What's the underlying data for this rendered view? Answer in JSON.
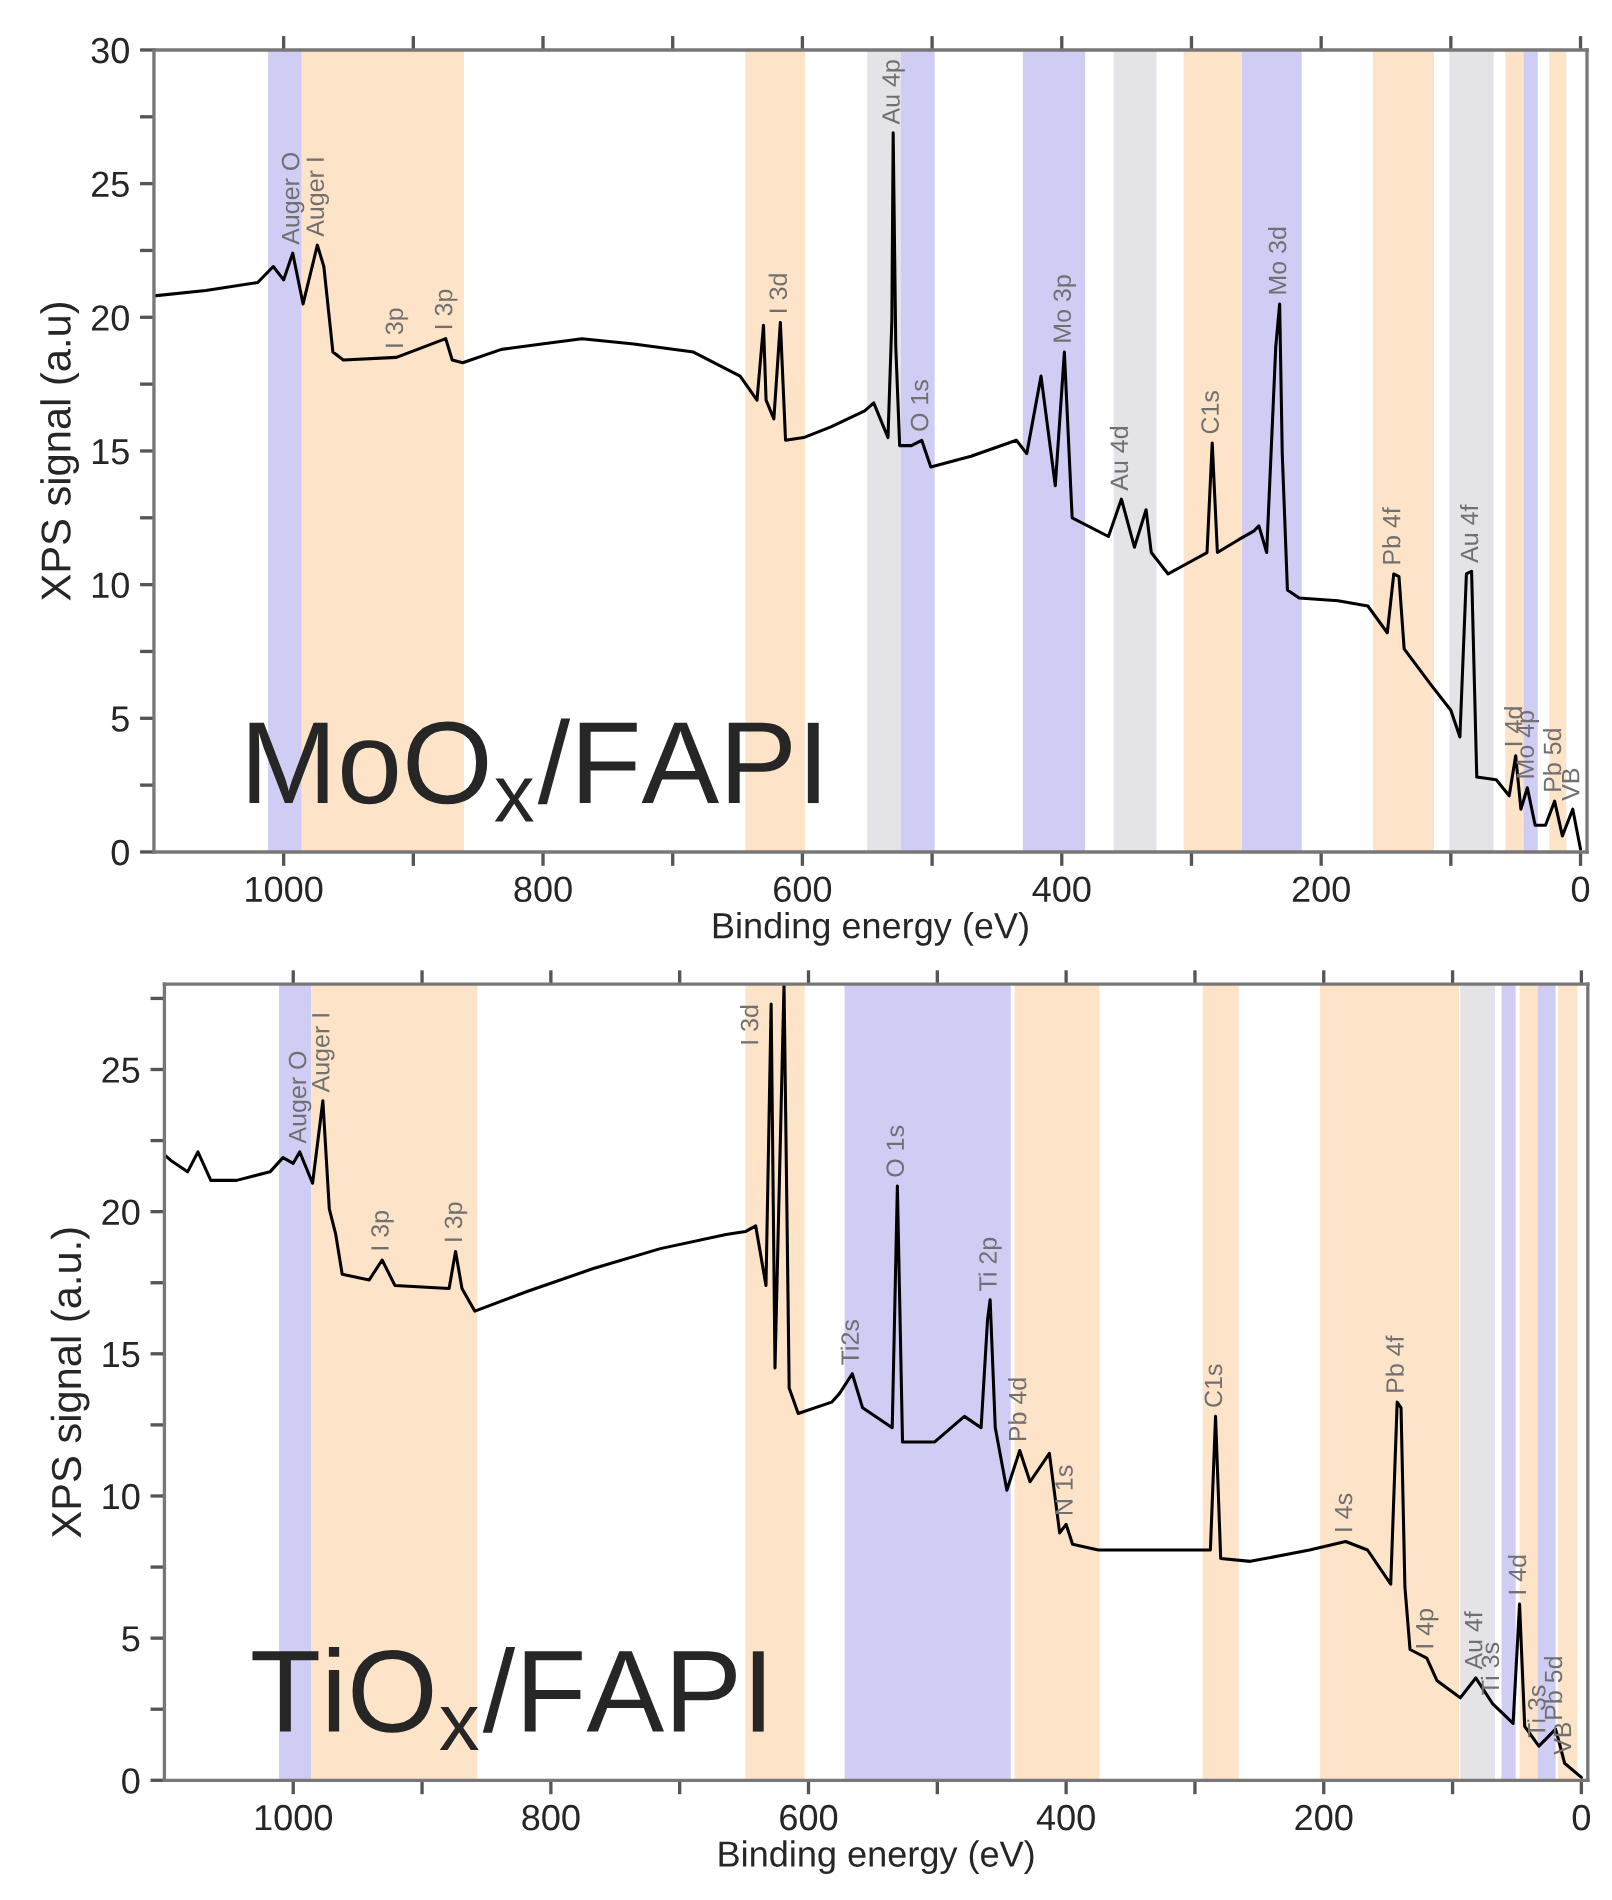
{
  "chart_data": [
    {
      "type": "line",
      "xlabel": "Binding energy (eV)",
      "ylabel": "XPS signal (a.u)",
      "xlim": [
        1100,
        -5
      ],
      "ylim": [
        0,
        30
      ],
      "xticks": [
        1000,
        {
          "value": 900,
          "label": null
        },
        800,
        {
          "value": 700,
          "label": null
        },
        600,
        {
          "value": 500,
          "label": null
        },
        400,
        {
          "value": 300,
          "label": null
        },
        200,
        {
          "value": 100,
          "label": null
        },
        0
      ],
      "yticks": [
        0,
        {
          "value": 2.5,
          "label": null
        },
        5,
        {
          "value": 7.5,
          "label": null
        },
        10,
        {
          "value": 12.5,
          "label": null
        },
        15,
        {
          "value": 17.5,
          "label": null
        },
        20,
        {
          "value": 22.5,
          "label": null
        },
        25,
        {
          "value": 27.5,
          "label": null
        },
        30
      ],
      "grid": false,
      "legend": false,
      "series": [
        {
          "color": "#000000",
          "x": [
            1100,
            1060,
            1020,
            1008,
            1000,
            993,
            985,
            974,
            969,
            962,
            954,
            913,
            875,
            870,
            862,
            832,
            801,
            770,
            730,
            684,
            648,
            635,
            630,
            628,
            622,
            617,
            613,
            599,
            578,
            552,
            545,
            534,
            531,
            530,
            528,
            525,
            516,
            508,
            501,
            470,
            435,
            427,
            416,
            405,
            398,
            392,
            364,
            354,
            344,
            335,
            331,
            318,
            303,
            288,
            284,
            280,
            263,
            252,
            248,
            242,
            235,
            232,
            230,
            226,
            217,
            187,
            164,
            149,
            144,
            140,
            136,
            116,
            100,
            93,
            88,
            84,
            80,
            65,
            55,
            50,
            46,
            41,
            35,
            27,
            20,
            14,
            6,
            0
          ],
          "values": [
            20.8,
            21.0,
            21.3,
            21.9,
            21.4,
            22.4,
            20.5,
            22.7,
            21.9,
            18.7,
            18.4,
            18.5,
            19.2,
            18.4,
            18.3,
            18.8,
            19.0,
            19.2,
            19.0,
            18.7,
            17.8,
            16.9,
            19.7,
            16.9,
            16.2,
            19.8,
            15.4,
            15.5,
            15.9,
            16.5,
            16.8,
            15.5,
            19.9,
            26.9,
            18.9,
            15.2,
            15.2,
            15.4,
            14.4,
            14.8,
            15.4,
            14.9,
            17.8,
            13.7,
            18.7,
            12.5,
            11.8,
            13.2,
            11.4,
            12.8,
            11.2,
            10.4,
            10.8,
            11.2,
            15.3,
            11.2,
            11.7,
            12.0,
            12.2,
            11.2,
            18.9,
            20.5,
            14.9,
            9.8,
            9.5,
            9.4,
            9.2,
            8.2,
            10.4,
            10.3,
            7.6,
            6.3,
            5.3,
            4.3,
            10.4,
            10.5,
            2.8,
            2.7,
            2.1,
            3.6,
            1.6,
            2.4,
            1.0,
            1.0,
            1.9,
            0.6,
            1.6,
            0.1
          ]
        }
      ],
      "bands": [
        {
          "axis": "x",
          "from": 1012,
          "to": 986,
          "color": "#d0cdf5"
        },
        {
          "axis": "x",
          "from": 986,
          "to": 861,
          "color": "#fde3c8"
        },
        {
          "axis": "x",
          "from": 644,
          "to": 598,
          "color": "#fde3c8"
        },
        {
          "axis": "x",
          "from": 550,
          "to": 524,
          "color": "#e3e3e8"
        },
        {
          "axis": "x",
          "from": 524,
          "to": 498,
          "color": "#d0cdf5"
        },
        {
          "axis": "x",
          "from": 430,
          "to": 382,
          "color": "#d0cdf5"
        },
        {
          "axis": "x",
          "from": 360,
          "to": 327,
          "color": "#e3e3e8"
        },
        {
          "axis": "x",
          "from": 306,
          "to": 261,
          "color": "#fde3c8"
        },
        {
          "axis": "x",
          "from": 261,
          "to": 215,
          "color": "#d0cdf5"
        },
        {
          "axis": "x",
          "from": 160,
          "to": 113,
          "color": "#fde3c8"
        },
        {
          "axis": "x",
          "from": 101,
          "to": 67,
          "color": "#e3e3e8"
        },
        {
          "axis": "x",
          "from": 58,
          "to": 44,
          "color": "#fde3c8"
        },
        {
          "axis": "x",
          "from": 44,
          "to": 33,
          "color": "#d0cdf5"
        },
        {
          "axis": "x",
          "from": 24,
          "to": 11,
          "color": "#fde3c8"
        }
      ],
      "annotations": [
        "MoO$_{x}$/FAPI",
        {
          "text": "Auger O",
          "x": 993,
          "y": 22.4
        },
        {
          "text": "Auger I",
          "x": 974,
          "y": 22.7
        },
        {
          "text": "I 3p",
          "x": 913,
          "y": 18.5
        },
        {
          "text": "I 3p",
          "x": 875,
          "y": 19.2
        },
        {
          "text": "I 3d",
          "x": 617,
          "y": 19.8
        },
        {
          "text": "Au 4p",
          "x": 530,
          "y": 26.9
        },
        {
          "text": "O 1s",
          "x": 508,
          "y": 15.4
        },
        {
          "text": "Mo 3p",
          "x": 398,
          "y": 18.7
        },
        {
          "text": "Au 4d",
          "x": 354,
          "y": 13.2
        },
        {
          "text": "C1s",
          "x": 284,
          "y": 15.3
        },
        {
          "text": "Mo 3d",
          "x": 232,
          "y": 20.5
        },
        {
          "text": "Pb 4f",
          "x": 144,
          "y": 10.4
        },
        {
          "text": "Au 4f",
          "x": 84,
          "y": 10.5
        },
        {
          "text": "I 4d",
          "x": 50,
          "y": 3.6
        },
        {
          "text": "Mo 4p",
          "x": 41,
          "y": 2.4
        },
        {
          "text": "Pb 5d",
          "x": 20,
          "y": 1.9
        },
        {
          "text": "VB",
          "x": 6,
          "y": 1.6
        }
      ]
    },
    {
      "type": "line",
      "xlabel": "Binding energy (eV)",
      "ylabel": "XPS signal (a.u.)",
      "xlim": [
        1100,
        -5
      ],
      "ylim": [
        0,
        28
      ],
      "xticks": [
        1000,
        {
          "value": 900,
          "label": null
        },
        800,
        {
          "value": 700,
          "label": null
        },
        600,
        {
          "value": 500,
          "label": null
        },
        400,
        {
          "value": 300,
          "label": null
        },
        200,
        {
          "value": 100,
          "label": null
        },
        0
      ],
      "yticks": [
        0,
        {
          "value": 2.5,
          "label": null
        },
        5,
        {
          "value": 7.5,
          "label": null
        },
        10,
        {
          "value": 12.5,
          "label": null
        },
        15,
        {
          "value": 17.5,
          "label": null
        },
        20,
        {
          "value": 22.5,
          "label": null
        },
        25,
        {
          "value": 27.5,
          "label": null
        }
      ],
      "grid": false,
      "legend": false,
      "series": [
        {
          "color": "#000000",
          "x": [
            1100,
            1095,
            1082,
            1074,
            1064,
            1044,
            1018,
            1008,
            1000,
            995,
            985,
            977,
            972,
            967,
            962,
            941,
            931,
            921,
            879,
            874,
            869,
            859,
            818,
            767,
            715,
            664,
            649,
            641,
            633,
            629,
            626,
            619,
            615,
            608,
            582,
            576,
            566,
            558,
            535,
            531,
            527,
            502,
            479,
            466,
            461,
            459,
            455,
            446,
            436,
            428,
            413,
            405,
            400,
            395,
            375,
            334,
            288,
            284,
            280,
            257,
            211,
            183,
            166,
            148,
            143,
            140,
            137,
            133,
            120,
            112,
            94,
            82,
            69,
            53,
            48,
            44,
            33,
            20,
            13,
            0
          ],
          "values": [
            22.0,
            21.8,
            21.4,
            22.1,
            21.1,
            21.1,
            21.4,
            21.9,
            21.7,
            22.1,
            21.0,
            23.9,
            20.1,
            19.2,
            17.8,
            17.6,
            18.3,
            17.4,
            17.3,
            18.6,
            17.3,
            16.5,
            17.2,
            18.0,
            18.7,
            19.2,
            19.3,
            19.5,
            17.4,
            27.3,
            14.5,
            28.0,
            13.8,
            12.9,
            13.3,
            13.6,
            14.3,
            13.1,
            12.4,
            20.9,
            11.9,
            11.9,
            12.8,
            12.4,
            16.2,
            16.9,
            12.4,
            10.2,
            11.6,
            10.5,
            11.5,
            8.7,
            9.0,
            8.3,
            8.1,
            8.1,
            8.1,
            12.8,
            7.8,
            7.7,
            8.1,
            8.4,
            8.1,
            6.9,
            13.3,
            13.1,
            6.8,
            4.6,
            4.3,
            3.5,
            2.9,
            3.6,
            2.7,
            2.0,
            6.2,
            1.9,
            1.2,
            1.8,
            0.6,
            0.1
          ]
        }
      ],
      "bands": [
        {
          "axis": "x",
          "from": 1011,
          "to": 986,
          "color": "#d0cdf5"
        },
        {
          "axis": "x",
          "from": 986,
          "to": 857,
          "color": "#fde3c8"
        },
        {
          "axis": "x",
          "from": 649,
          "to": 603,
          "color": "#fde3c8"
        },
        {
          "axis": "x",
          "from": 572,
          "to": 443,
          "color": "#d0cdf5"
        },
        {
          "axis": "x",
          "from": 440,
          "to": 374,
          "color": "#fde3c8"
        },
        {
          "axis": "x",
          "from": 294,
          "to": 266,
          "color": "#fde3c8"
        },
        {
          "axis": "x",
          "from": 203,
          "to": 95,
          "color": "#fde3c8"
        },
        {
          "axis": "x",
          "from": 94,
          "to": 67,
          "color": "#e3e3e8"
        },
        {
          "axis": "x",
          "from": 62,
          "to": 51,
          "color": "#d0cdf5"
        },
        {
          "axis": "x",
          "from": 48,
          "to": 34,
          "color": "#fde3c8"
        },
        {
          "axis": "x",
          "from": 34,
          "to": 20,
          "color": "#d0cdf5"
        },
        {
          "axis": "x",
          "from": 18,
          "to": 3,
          "color": "#fde3c8"
        }
      ],
      "annotations": [
        "TiO$_{x}$/FAPI",
        {
          "text": "Auger O",
          "x": 995,
          "y": 22.1
        },
        {
          "text": "Auger I",
          "x": 977,
          "y": 23.9
        },
        {
          "text": "I 3p",
          "x": 931,
          "y": 18.3
        },
        {
          "text": "I 3p",
          "x": 874,
          "y": 18.6
        },
        {
          "text": "I 3d",
          "x": 629,
          "y": 27.3
        },
        {
          "text": "Ti2s",
          "x": 566,
          "y": 14.3
        },
        {
          "text": "O 1s",
          "x": 531,
          "y": 20.9
        },
        {
          "text": "Ti 2p",
          "x": 459,
          "y": 16.9
        },
        {
          "text": "Pb 4d",
          "x": 436,
          "y": 11.6
        },
        {
          "text": "N 1s",
          "x": 400,
          "y": 9.0
        },
        {
          "text": "C1s",
          "x": 284,
          "y": 12.8
        },
        {
          "text": "I 4s",
          "x": 183,
          "y": 8.4
        },
        {
          "text": "Pb 4f",
          "x": 143,
          "y": 13.3
        },
        {
          "text": "I 4p",
          "x": 120,
          "y": 4.3
        },
        {
          "text": "Au 4f",
          "x": 82,
          "y": 3.6
        },
        {
          "text": "Ti 3s",
          "x": 69,
          "y": 2.7
        },
        {
          "text": "I 4d",
          "x": 48,
          "y": 6.2
        },
        {
          "text": "Ti 3s",
          "x": 33,
          "y": 1.2
        },
        {
          "text": "Pb 5d",
          "x": 20,
          "y": 1.8
        },
        {
          "text": "VB",
          "x": 13,
          "y": 0.6
        }
      ]
    }
  ]
}
